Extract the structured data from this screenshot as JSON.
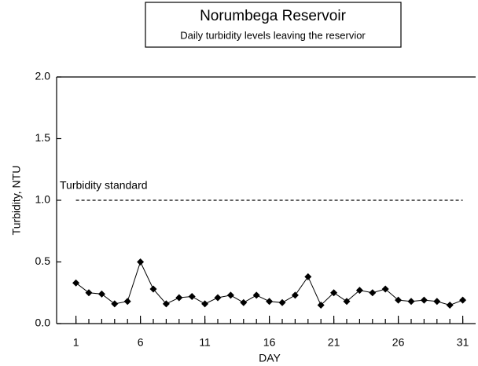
{
  "chart_data": {
    "type": "line",
    "title": "Norumbega Reservoir",
    "subtitle": "Daily turbidity levels leaving the reservior",
    "xlabel": "DAY",
    "ylabel": "Turbidity, NTU",
    "x": [
      1,
      2,
      3,
      4,
      5,
      6,
      7,
      8,
      9,
      10,
      11,
      12,
      13,
      14,
      15,
      16,
      17,
      18,
      19,
      20,
      21,
      22,
      23,
      24,
      25,
      26,
      27,
      28,
      29,
      30,
      31
    ],
    "series": [
      {
        "color": "#000000",
        "values": [
          0.33,
          0.25,
          0.24,
          0.16,
          0.18,
          0.5,
          0.28,
          0.16,
          0.21,
          0.22,
          0.16,
          0.21,
          0.23,
          0.17,
          0.23,
          0.18,
          0.17,
          0.23,
          0.38,
          0.15,
          0.25,
          0.18,
          0.27,
          0.25,
          0.28,
          0.19,
          0.18,
          0.19,
          0.18,
          0.15,
          0.19
        ]
      }
    ],
    "xlim": [
      -0.5,
      32
    ],
    "xticks": [
      1,
      6,
      11,
      16,
      21,
      26,
      31
    ],
    "ylim": [
      0,
      2
    ],
    "yticks": [
      {
        "value": 0,
        "label": "0.0"
      },
      {
        "value": 0.5,
        "label": "0.5"
      },
      {
        "value": 1,
        "label": "1.0"
      },
      {
        "value": 1.5,
        "label": "1.5"
      },
      {
        "value": 2,
        "label": "2.0"
      }
    ],
    "standard": {
      "label": "Turbidity standard",
      "value": 1
    }
  }
}
